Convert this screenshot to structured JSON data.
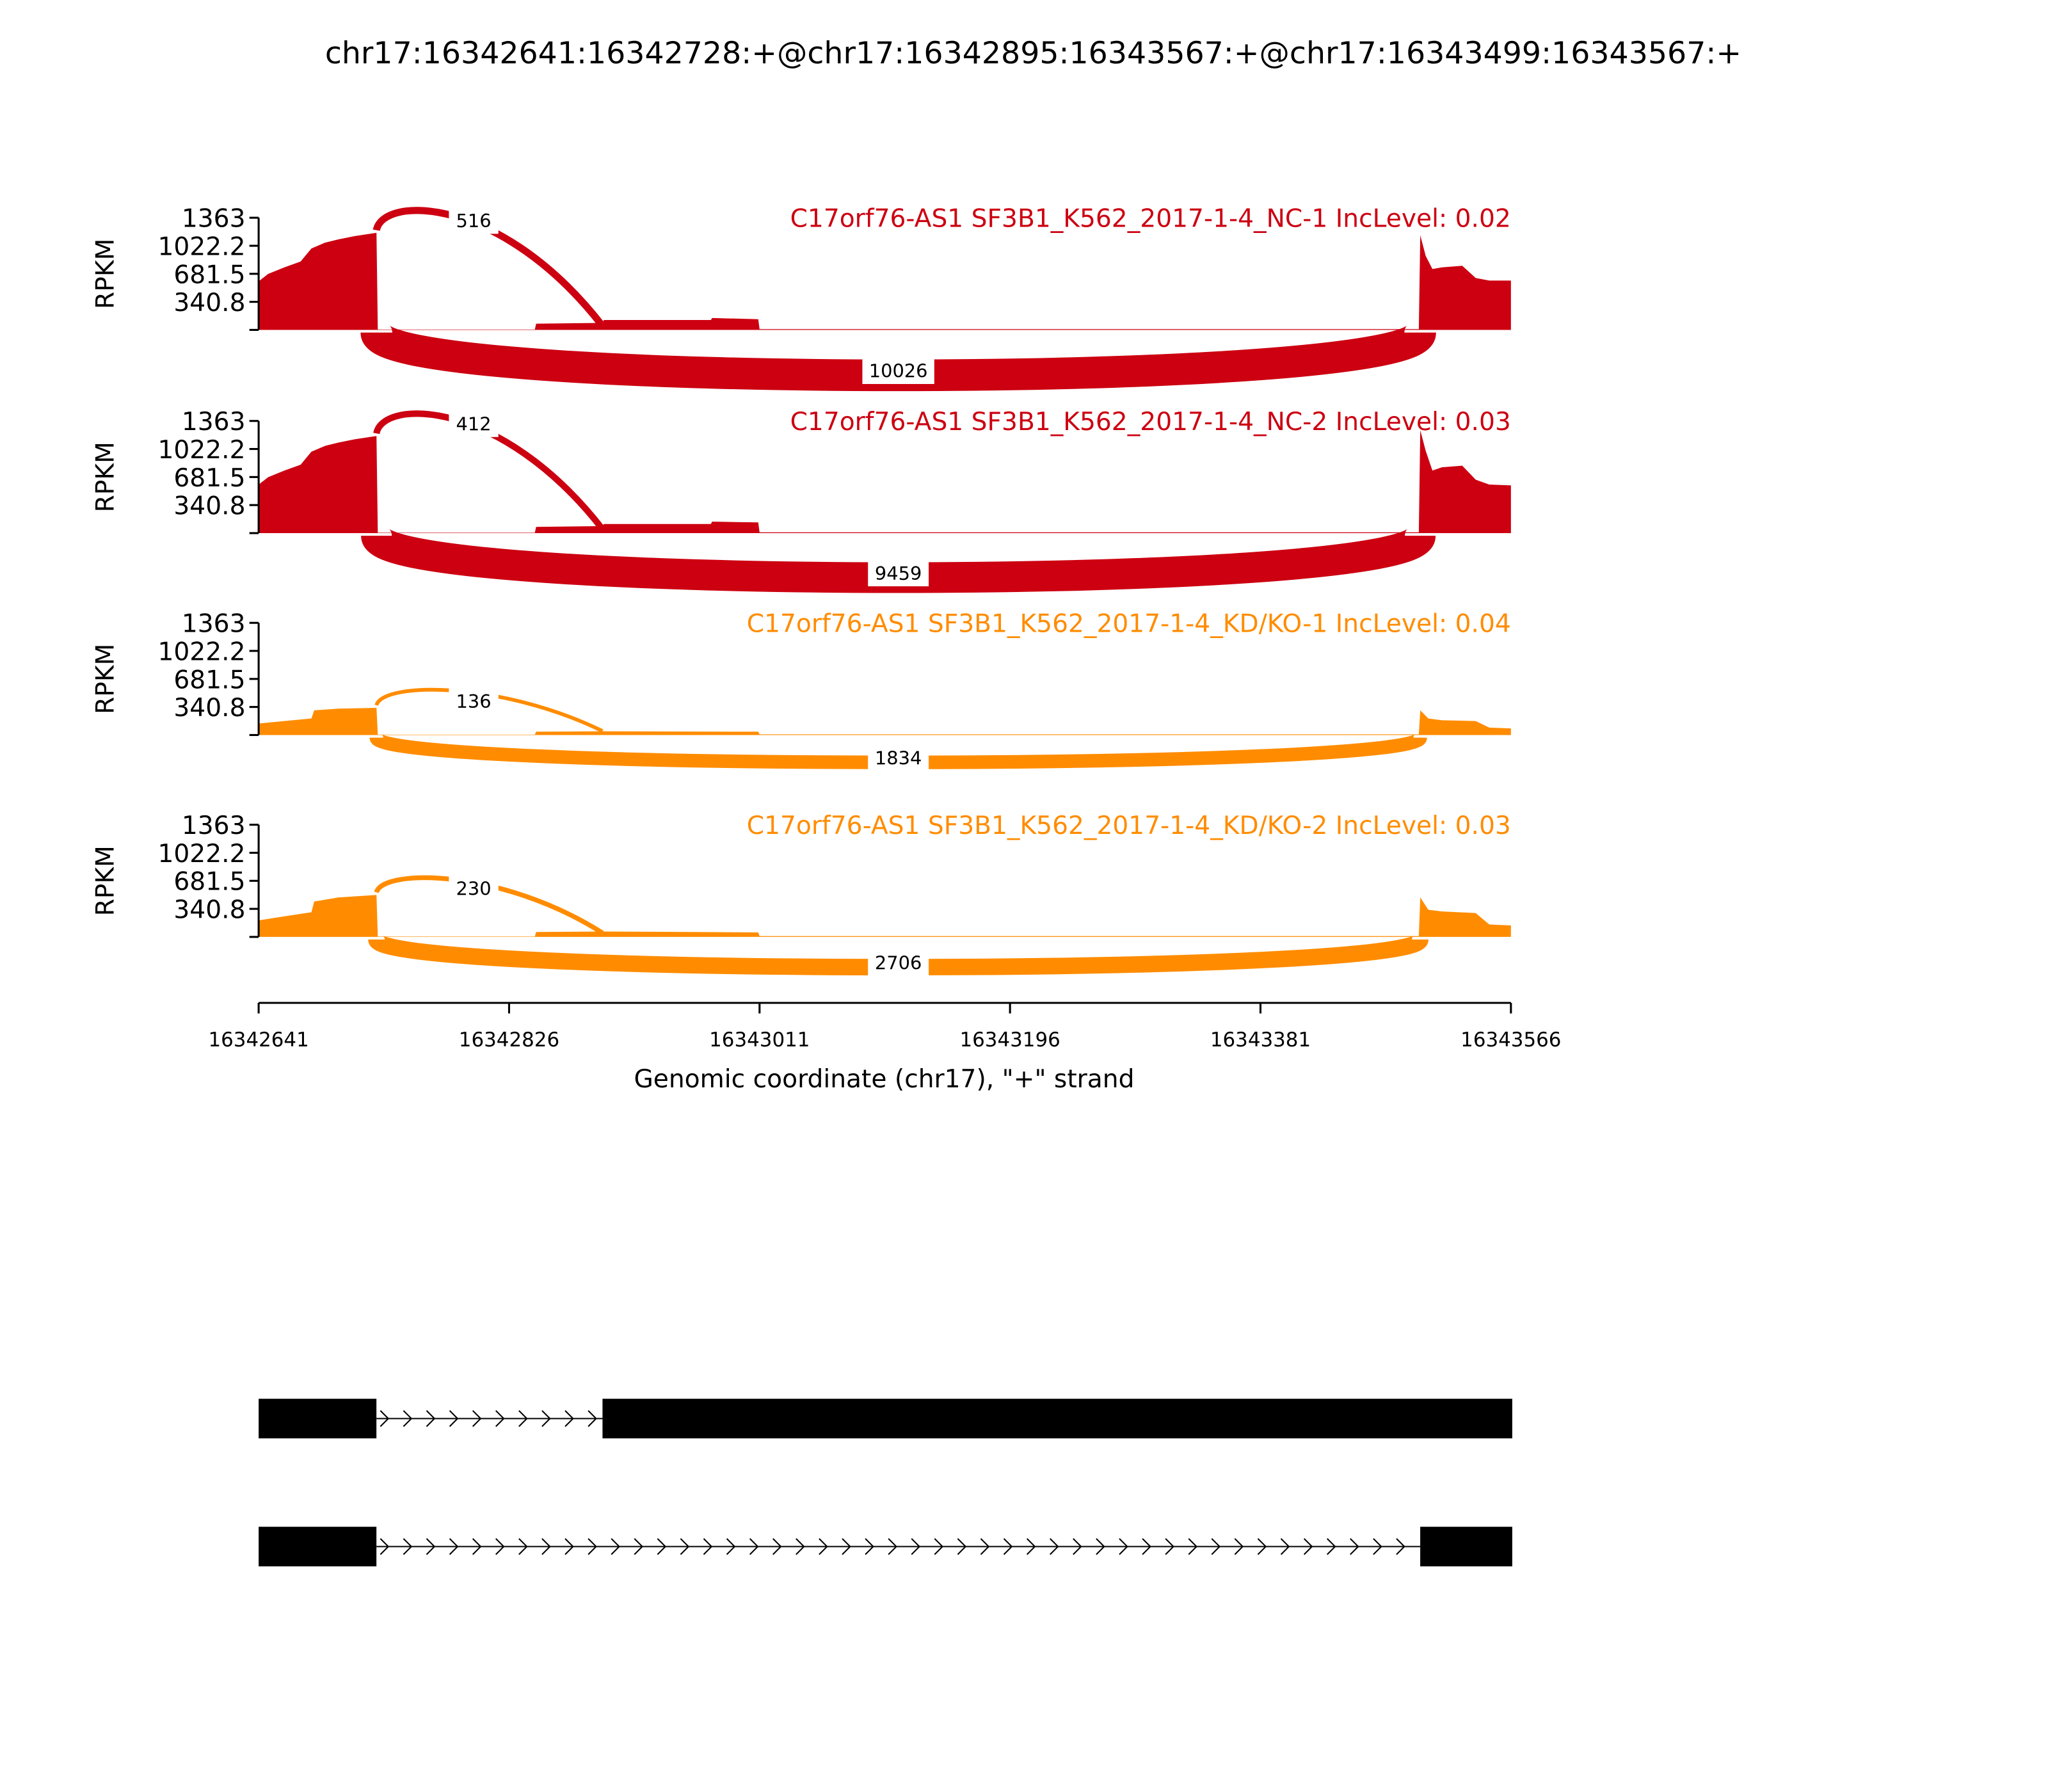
{
  "chart_data": {
    "type": "sashimi",
    "title": "chr17:16342641:16342728:+@chr17:16342895:16343567:+@chr17:16343499:16343567:+",
    "xlabel": "Genomic coordinate (chr17), \"+\" strand",
    "ylabel": "RPKM",
    "xlim": [
      16342641,
      16343566
    ],
    "ylim": [
      0,
      1363
    ],
    "yticks": [
      "1363",
      "1022.2",
      "681.5",
      "340.8"
    ],
    "ytick_values": [
      1363,
      1022.2,
      681.5,
      340.8
    ],
    "xticks": [
      "16342641",
      "16342826",
      "16343011",
      "16343196",
      "16343381",
      "16343566"
    ],
    "xtick_values": [
      16342641,
      16342826,
      16343011,
      16343196,
      16343381,
      16343566
    ],
    "colors": {
      "NC": "#cc0011",
      "KD/KO": "#ff8c00"
    },
    "samples": [
      {
        "label": "C17orf76-AS1 SF3B1_K562_2017-1-4_NC-1 IncLevel: 0.02",
        "color": "#cc0011",
        "coverage": [
          [
            16342641,
            590
          ],
          [
            16342648,
            680
          ],
          [
            16342660,
            760
          ],
          [
            16342672,
            830
          ],
          [
            16342680,
            990
          ],
          [
            16342690,
            1060
          ],
          [
            16342700,
            1100
          ],
          [
            16342712,
            1140
          ],
          [
            16342728,
            1180
          ],
          [
            16342729,
            5
          ],
          [
            16342845,
            5
          ],
          [
            16342846,
            75
          ],
          [
            16342895,
            85
          ],
          [
            16342896,
            120
          ],
          [
            16342975,
            120
          ],
          [
            16342976,
            145
          ],
          [
            16343010,
            130
          ],
          [
            16343011,
            10
          ],
          [
            16343498,
            10
          ],
          [
            16343499,
            1150
          ],
          [
            16343503,
            900
          ],
          [
            16343508,
            740
          ],
          [
            16343515,
            760
          ],
          [
            16343530,
            780
          ],
          [
            16343540,
            630
          ],
          [
            16343550,
            600
          ],
          [
            16343566,
            600
          ]
        ],
        "junctions": [
          {
            "start": 16342728,
            "end": 16342895,
            "count": "516",
            "side": "top"
          },
          {
            "start": 16342728,
            "end": 16343499,
            "count": "10026",
            "side": "bottom"
          }
        ]
      },
      {
        "label": "C17orf76-AS1 SF3B1_K562_2017-1-4_NC-2 IncLevel: 0.03",
        "color": "#cc0011",
        "coverage": [
          [
            16342641,
            590
          ],
          [
            16342648,
            680
          ],
          [
            16342660,
            760
          ],
          [
            16342672,
            830
          ],
          [
            16342680,
            990
          ],
          [
            16342690,
            1060
          ],
          [
            16342700,
            1100
          ],
          [
            16342712,
            1140
          ],
          [
            16342728,
            1180
          ],
          [
            16342729,
            5
          ],
          [
            16342845,
            5
          ],
          [
            16342846,
            75
          ],
          [
            16342895,
            85
          ],
          [
            16342896,
            110
          ],
          [
            16342975,
            110
          ],
          [
            16342976,
            140
          ],
          [
            16343010,
            130
          ],
          [
            16343011,
            10
          ],
          [
            16343498,
            10
          ],
          [
            16343499,
            1250
          ],
          [
            16343503,
            1000
          ],
          [
            16343508,
            760
          ],
          [
            16343515,
            800
          ],
          [
            16343530,
            820
          ],
          [
            16343540,
            650
          ],
          [
            16343550,
            590
          ],
          [
            16343566,
            580
          ]
        ],
        "junctions": [
          {
            "start": 16342728,
            "end": 16342895,
            "count": "412",
            "side": "top"
          },
          {
            "start": 16342728,
            "end": 16343499,
            "count": "9459",
            "side": "bottom"
          }
        ]
      },
      {
        "label": "C17orf76-AS1 SF3B1_K562_2017-1-4_KD/KO-1 IncLevel: 0.04",
        "color": "#ff8c00",
        "coverage": [
          [
            16342641,
            140
          ],
          [
            16342660,
            170
          ],
          [
            16342680,
            200
          ],
          [
            16342682,
            300
          ],
          [
            16342700,
            320
          ],
          [
            16342728,
            330
          ],
          [
            16342729,
            5
          ],
          [
            16342845,
            5
          ],
          [
            16342846,
            40
          ],
          [
            16342895,
            45
          ],
          [
            16342896,
            45
          ],
          [
            16343010,
            40
          ],
          [
            16343011,
            8
          ],
          [
            16343498,
            8
          ],
          [
            16343499,
            300
          ],
          [
            16343505,
            200
          ],
          [
            16343515,
            180
          ],
          [
            16343540,
            170
          ],
          [
            16343550,
            90
          ],
          [
            16343566,
            80
          ]
        ],
        "junctions": [
          {
            "start": 16342728,
            "end": 16342895,
            "count": "136",
            "side": "top"
          },
          {
            "start": 16342728,
            "end": 16343499,
            "count": "1834",
            "side": "bottom"
          }
        ]
      },
      {
        "label": "C17orf76-AS1 SF3B1_K562_2017-1-4_KD/KO-2 IncLevel: 0.03",
        "color": "#ff8c00",
        "coverage": [
          [
            16342641,
            200
          ],
          [
            16342660,
            250
          ],
          [
            16342680,
            300
          ],
          [
            16342682,
            430
          ],
          [
            16342700,
            480
          ],
          [
            16342728,
            510
          ],
          [
            16342729,
            5
          ],
          [
            16342845,
            5
          ],
          [
            16342846,
            60
          ],
          [
            16342895,
            65
          ],
          [
            16342896,
            65
          ],
          [
            16343010,
            55
          ],
          [
            16343011,
            10
          ],
          [
            16343498,
            10
          ],
          [
            16343499,
            480
          ],
          [
            16343505,
            330
          ],
          [
            16343515,
            310
          ],
          [
            16343540,
            290
          ],
          [
            16343550,
            150
          ],
          [
            16343566,
            140
          ]
        ],
        "junctions": [
          {
            "start": 16342728,
            "end": 16342895,
            "count": "230",
            "side": "top"
          },
          {
            "start": 16342728,
            "end": 16343499,
            "count": "2706",
            "side": "bottom"
          }
        ]
      }
    ],
    "transcripts": [
      {
        "exons": [
          [
            16342641,
            16342728
          ],
          [
            16342895,
            16343567
          ]
        ]
      },
      {
        "exons": [
          [
            16342641,
            16342728
          ],
          [
            16343499,
            16343567
          ]
        ]
      }
    ]
  }
}
